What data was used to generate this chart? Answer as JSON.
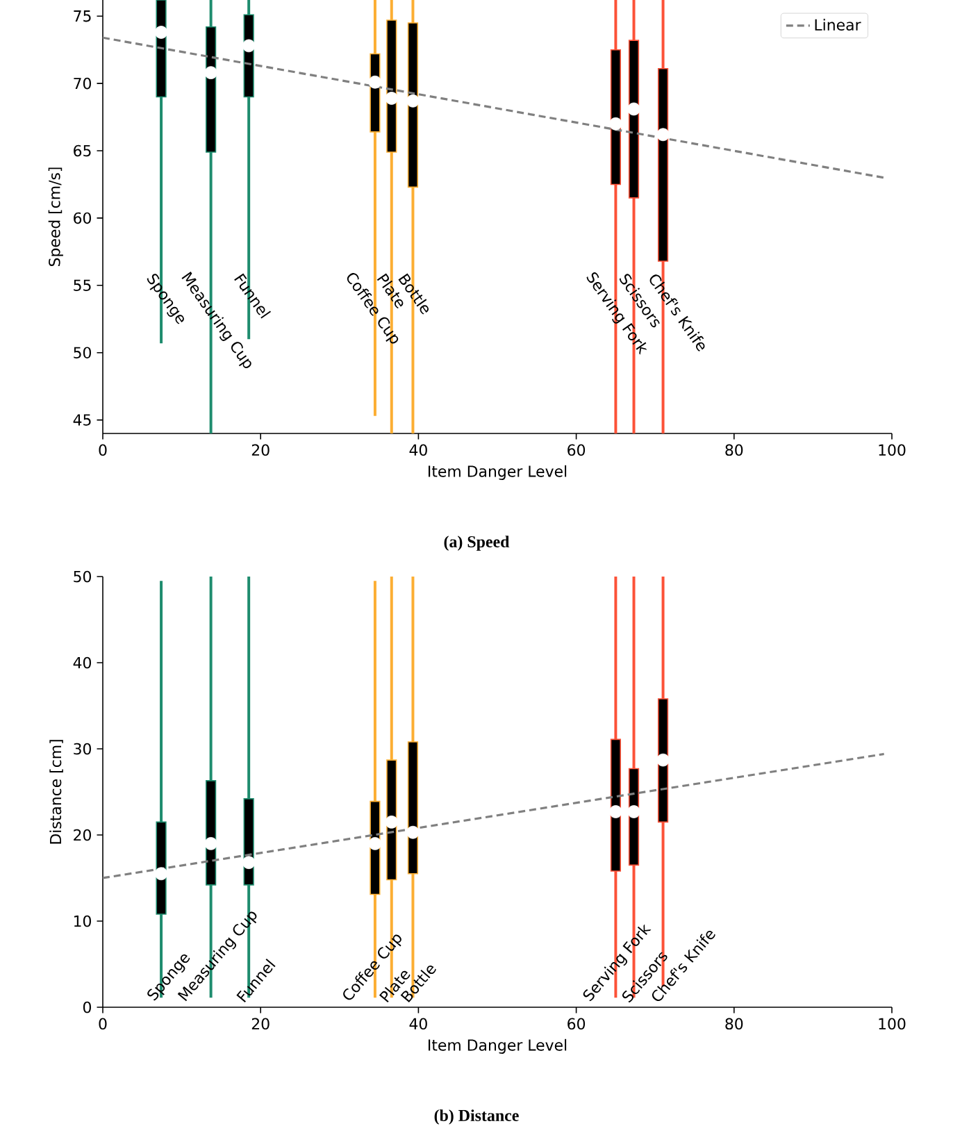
{
  "chart_data": [
    {
      "type": "box",
      "title": "**(a)** **Speed**",
      "xlabel": "Item Danger Level",
      "ylabel": "Speed [cm/s]",
      "xlim": [
        0,
        100
      ],
      "xticks": [
        0,
        20,
        40,
        60,
        80,
        100
      ],
      "ylim": [
        44,
        76.2
      ],
      "yticks": [
        45,
        50,
        55,
        60,
        65,
        70,
        75
      ],
      "legend": "top right",
      "series": [
        {
          "color": "#1e8c6e",
          "x": [
            7.4,
            13.7,
            18.5
          ],
          "boxes": [
            {
              "low": 50.7,
              "q1": 69.0,
              "median": 73.8,
              "q3": 76.2,
              "high": 76.2
            },
            {
              "low": 44,
              "q1": 64.9,
              "median": 70.8,
              "q3": 74.2,
              "high": 76.2
            },
            {
              "low": 51.0,
              "q1": 69.0,
              "median": 72.8,
              "q3": 75.1,
              "high": 76.2
            }
          ]
        },
        {
          "color": "#fcae33",
          "x": [
            34.5,
            36.6,
            39.3
          ],
          "boxes": [
            {
              "low": 45.3,
              "q1": 66.4,
              "median": 70.1,
              "q3": 72.2,
              "high": 76.2
            },
            {
              "low": 44,
              "q1": 64.9,
              "median": 68.9,
              "q3": 74.7,
              "high": 76.2
            },
            {
              "low": 44,
              "q1": 62.3,
              "median": 68.7,
              "q3": 74.5,
              "high": 76.2
            }
          ]
        },
        {
          "color": "#fc5238",
          "x": [
            65.0,
            67.3,
            71.0
          ],
          "boxes": [
            {
              "low": 44,
              "q1": 62.5,
              "median": 67.0,
              "q3": 72.5,
              "high": 76.2
            },
            {
              "low": 44,
              "q1": 61.5,
              "median": 68.1,
              "q3": 73.2,
              "high": 76.2
            },
            {
              "low": 44,
              "q1": 56.8,
              "median": 66.2,
              "q3": 71.1,
              "high": 76.2
            }
          ]
        },
        {
          "type": "line",
          "name": "Linear",
          "color": "#808080",
          "line_style": "dashed",
          "x": [
            0,
            99
          ],
          "values": [
            73.4,
            63.0
          ]
        }
      ],
      "annotations": [
        "Sponge",
        "Measuring Cup",
        "Funnel",
        "Coffee Cup",
        "Plate",
        "Bottle",
        "Serving Fork",
        "Scissors",
        "Chef's Knife"
      ]
    },
    {
      "type": "box",
      "title": "**(b)** **Distance**",
      "xlabel": "Item Danger Level",
      "ylabel": "Distance [cm]",
      "xlim": [
        0,
        100
      ],
      "xticks": [
        0,
        20,
        40,
        60,
        80,
        100
      ],
      "ylim": [
        0,
        50
      ],
      "yticks": [
        0,
        10,
        20,
        30,
        40,
        50
      ],
      "series": [
        {
          "color": "#1e8c6e",
          "x": [
            7.4,
            13.7,
            18.5
          ],
          "boxes": [
            {
              "low": 1.1,
              "q1": 10.8,
              "median": 15.5,
              "q3": 21.5,
              "high": 49.5
            },
            {
              "low": 1.1,
              "q1": 14.2,
              "median": 19.0,
              "q3": 26.3,
              "high": 50.0
            },
            {
              "low": 1.1,
              "q1": 14.2,
              "median": 16.8,
              "q3": 24.2,
              "high": 50.0
            }
          ]
        },
        {
          "color": "#fcae33",
          "x": [
            34.5,
            36.6,
            39.3
          ],
          "boxes": [
            {
              "low": 1.1,
              "q1": 13.1,
              "median": 19.0,
              "q3": 23.9,
              "high": 49.5
            },
            {
              "low": 1.1,
              "q1": 14.8,
              "median": 21.5,
              "q3": 28.7,
              "high": 50.0
            },
            {
              "low": 1.1,
              "q1": 15.5,
              "median": 20.3,
              "q3": 30.8,
              "high": 50.0
            }
          ]
        },
        {
          "color": "#fc5238",
          "x": [
            65.0,
            67.3,
            71.0
          ],
          "boxes": [
            {
              "low": 1.1,
              "q1": 15.8,
              "median": 22.7,
              "q3": 31.1,
              "high": 50.0
            },
            {
              "low": 1.1,
              "q1": 16.5,
              "median": 22.7,
              "q3": 27.7,
              "high": 50.0
            },
            {
              "low": 2.4,
              "q1": 21.5,
              "median": 28.7,
              "q3": 35.8,
              "high": 50.0
            }
          ]
        },
        {
          "type": "line",
          "color": "#808080",
          "line_style": "dashed",
          "x": [
            0,
            99
          ],
          "values": [
            15.0,
            29.4
          ]
        }
      ],
      "annotations": [
        "Sponge",
        "Measuring Cup",
        "Funnel",
        "Coffee Cup",
        "Plate",
        "Bottle",
        "Serving Fork",
        "Scissors",
        "Chef's Knife"
      ]
    }
  ]
}
